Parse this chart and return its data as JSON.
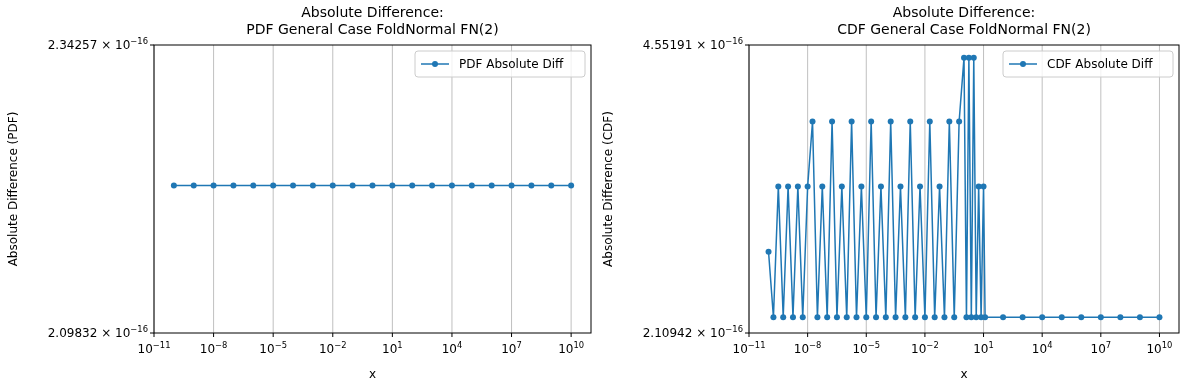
{
  "chart_data": [
    {
      "type": "line",
      "title": "Absolute Difference:\nPDF General Case FoldNormal FN(2)",
      "xlabel": "x",
      "ylabel": "Absolute Difference (PDF)",
      "log": "xy",
      "grid": "x",
      "legend": "top right",
      "marker": "circle",
      "line_style": "solid",
      "xlim": [
        1e-11,
        100000000000.0
      ],
      "xticks": [
        {
          "value": 1e-11,
          "label": "10$^{−11}$"
        },
        {
          "value": 1e-08,
          "label": "10$^{−8}$"
        },
        {
          "value": 1e-05,
          "label": "10$^{−5}$"
        },
        {
          "value": 0.01,
          "label": "10$^{−2}$"
        },
        {
          "value": 10.0,
          "label": "10$^{1}$"
        },
        {
          "value": 10000.0,
          "label": "10$^{4}$"
        },
        {
          "value": 10000000.0,
          "label": "10$^{7}$"
        },
        {
          "value": 10000000000.0,
          "label": "10$^{10}$"
        }
      ],
      "ylim": [
        2.09832e-16,
        2.34257e-16
      ],
      "yticks": [
        {
          "value": 2.09832e-16,
          "label": "2.09832 × 10$^{−16}$"
        },
        {
          "value": 2.34257e-16,
          "label": "2.34257 × 10$^{−16}$"
        }
      ],
      "series": [
        {
          "name": "PDF Absolute Diff",
          "color": "#1f77b4",
          "x": [
            1e-10,
            1e-09,
            1e-08,
            1e-07,
            1e-06,
            1e-05,
            0.0001,
            0.001,
            0.01,
            0.1,
            1,
            10.0,
            100.0,
            1000.0,
            10000.0,
            100000.0,
            1000000.0,
            10000000.0,
            100000000.0,
            1000000000.0,
            10000000000.0
          ],
          "values": [
            2.22e-16,
            2.22e-16,
            2.22e-16,
            2.22e-16,
            2.22e-16,
            2.22e-16,
            2.22e-16,
            2.22e-16,
            2.22e-16,
            2.22e-16,
            2.22e-16,
            2.22e-16,
            2.22e-16,
            2.22e-16,
            2.22e-16,
            2.22e-16,
            2.22e-16,
            2.22e-16,
            2.22e-16,
            2.22e-16,
            2.22e-16
          ]
        }
      ]
    },
    {
      "type": "line",
      "title": "Absolute Difference:\nCDF General Case FoldNormal FN(2)",
      "xlabel": "x",
      "ylabel": "Absolute Difference (CDF)",
      "log": "xy",
      "grid": "x",
      "legend": "top right",
      "marker": "circle",
      "line_style": "solid",
      "xlim": [
        1e-11,
        100000000000.0
      ],
      "xticks": [
        {
          "value": 1e-11,
          "label": "10$^{−11}$"
        },
        {
          "value": 1e-08,
          "label": "10$^{−8}$"
        },
        {
          "value": 1e-05,
          "label": "10$^{−5}$"
        },
        {
          "value": 0.01,
          "label": "10$^{−2}$"
        },
        {
          "value": 10.0,
          "label": "10$^{1}$"
        },
        {
          "value": 10000.0,
          "label": "10$^{4}$"
        },
        {
          "value": 10000000.0,
          "label": "10$^{7}$"
        },
        {
          "value": 10000000000.0,
          "label": "10$^{10}$"
        }
      ],
      "ylim": [
        2.10942e-16,
        4.55191e-16
      ],
      "yticks": [
        {
          "value": 2.10942e-16,
          "label": "2.10942 × 10$^{−16}$"
        },
        {
          "value": 4.55191e-16,
          "label": "4.55191 × 10$^{−16}$"
        }
      ],
      "series": [
        {
          "name": "CDF Absolute Diff",
          "color": "#1f77b4",
          "x": [
            1e-10,
            1.778e-10,
            3.162e-10,
            5.623e-10,
            1e-09,
            1.778e-09,
            3.162e-09,
            5.623e-09,
            1e-08,
            1.778e-08,
            3.162e-08,
            5.623e-08,
            1e-07,
            1.778e-07,
            3.162e-07,
            5.623e-07,
            1e-06,
            1.778e-06,
            3.162e-06,
            5.623e-06,
            1e-05,
            1.778e-05,
            3.162e-05,
            5.623e-05,
            0.0001,
            0.0001778,
            0.0003162,
            0.0005623,
            0.001,
            0.001778,
            0.003162,
            0.005623,
            0.01,
            0.01778,
            0.03162,
            0.05623,
            0.1,
            0.1778,
            0.3162,
            0.5623,
            1,
            1.334,
            1.778,
            2.371,
            3.162,
            4.217,
            5.623,
            7.499,
            10.0,
            12.0,
            100.0,
            1000.0,
            10000.0,
            100000.0,
            1000000.0,
            10000000.0,
            100000000.0,
            1000000000.0,
            10000000000.0
          ],
          "values": [
            2.62e-16,
            2.2e-16,
            3.12e-16,
            2.2e-16,
            3.12e-16,
            2.2e-16,
            3.12e-16,
            2.2e-16,
            3.12e-16,
            3.71e-16,
            2.2e-16,
            3.12e-16,
            2.2e-16,
            3.71e-16,
            2.2e-16,
            3.12e-16,
            2.2e-16,
            3.71e-16,
            2.2e-16,
            3.12e-16,
            2.2e-16,
            3.71e-16,
            2.2e-16,
            3.12e-16,
            2.2e-16,
            3.71e-16,
            2.2e-16,
            3.12e-16,
            2.2e-16,
            3.71e-16,
            2.2e-16,
            3.12e-16,
            2.2e-16,
            3.71e-16,
            2.2e-16,
            3.12e-16,
            2.2e-16,
            3.71e-16,
            2.2e-16,
            3.71e-16,
            4.4e-16,
            2.2e-16,
            4.4e-16,
            2.2e-16,
            4.4e-16,
            2.2e-16,
            3.12e-16,
            2.2e-16,
            3.12e-16,
            2.2e-16,
            2.2e-16,
            2.2e-16,
            2.2e-16,
            2.2e-16,
            2.2e-16,
            2.2e-16,
            2.2e-16,
            2.2e-16,
            2.2e-16
          ]
        }
      ]
    }
  ]
}
